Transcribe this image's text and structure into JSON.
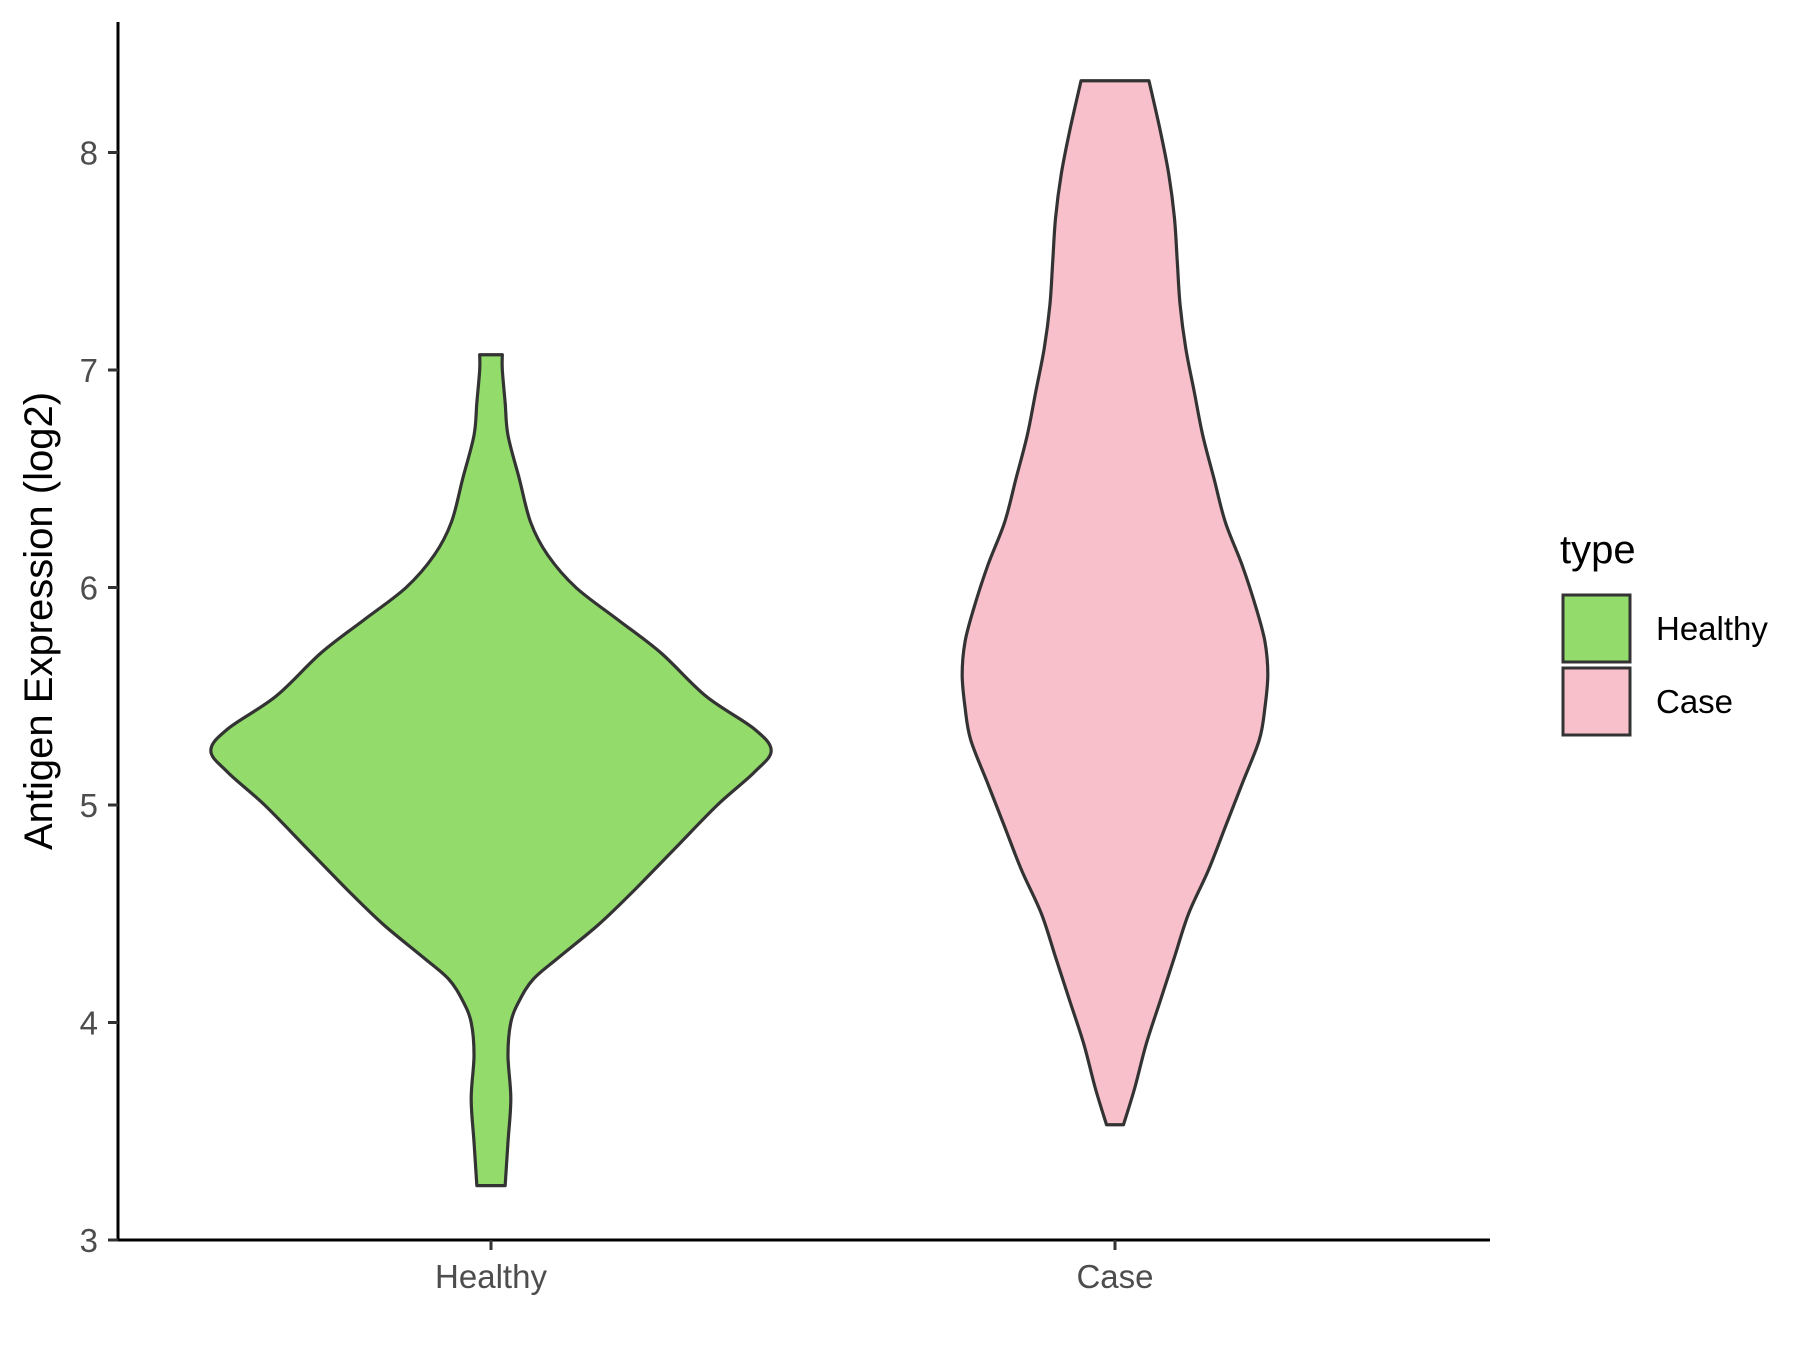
{
  "chart_data": {
    "type": "violin",
    "title": "",
    "xlabel": "",
    "ylabel": "Antigen Expression (log2)",
    "ylim": [
      3,
      8.6
    ],
    "yticks": [
      3,
      4,
      5,
      6,
      7,
      8
    ],
    "categories": [
      "Healthy",
      "Case"
    ],
    "grid": false,
    "legend": {
      "title": "type",
      "placement": "right",
      "entries": [
        {
          "label": "Healthy",
          "color": "#93dc6b"
        },
        {
          "label": "Case",
          "color": "#f8c0cb"
        }
      ]
    },
    "series": [
      {
        "name": "Healthy",
        "color": "#93dc6b",
        "outline": "#333333",
        "min": 3.25,
        "max": 7.07,
        "density_profile": [
          [
            3.25,
            0.05
          ],
          [
            3.45,
            0.06
          ],
          [
            3.65,
            0.07
          ],
          [
            3.85,
            0.06
          ],
          [
            4.0,
            0.07
          ],
          [
            4.1,
            0.1
          ],
          [
            4.2,
            0.15
          ],
          [
            4.3,
            0.24
          ],
          [
            4.45,
            0.38
          ],
          [
            4.6,
            0.5
          ],
          [
            4.8,
            0.65
          ],
          [
            5.0,
            0.8
          ],
          [
            5.15,
            0.93
          ],
          [
            5.25,
            0.99
          ],
          [
            5.35,
            0.93
          ],
          [
            5.5,
            0.76
          ],
          [
            5.7,
            0.6
          ],
          [
            5.85,
            0.45
          ],
          [
            6.0,
            0.3
          ],
          [
            6.15,
            0.2
          ],
          [
            6.3,
            0.14
          ],
          [
            6.5,
            0.1
          ],
          [
            6.7,
            0.06
          ],
          [
            6.85,
            0.05
          ],
          [
            7.0,
            0.04
          ],
          [
            7.07,
            0.04
          ]
        ]
      },
      {
        "name": "Case",
        "color": "#f8c0cb",
        "outline": "#333333",
        "min": 3.53,
        "max": 8.33,
        "density_profile": [
          [
            3.53,
            0.03
          ],
          [
            3.7,
            0.07
          ],
          [
            3.9,
            0.11
          ],
          [
            4.1,
            0.16
          ],
          [
            4.3,
            0.21
          ],
          [
            4.5,
            0.26
          ],
          [
            4.7,
            0.33
          ],
          [
            4.9,
            0.39
          ],
          [
            5.1,
            0.45
          ],
          [
            5.3,
            0.51
          ],
          [
            5.45,
            0.53
          ],
          [
            5.6,
            0.54
          ],
          [
            5.75,
            0.53
          ],
          [
            5.9,
            0.5
          ],
          [
            6.1,
            0.45
          ],
          [
            6.3,
            0.39
          ],
          [
            6.5,
            0.35
          ],
          [
            6.7,
            0.31
          ],
          [
            6.9,
            0.28
          ],
          [
            7.1,
            0.25
          ],
          [
            7.3,
            0.23
          ],
          [
            7.5,
            0.22
          ],
          [
            7.7,
            0.21
          ],
          [
            7.9,
            0.19
          ],
          [
            8.1,
            0.16
          ],
          [
            8.33,
            0.12
          ]
        ]
      }
    ]
  }
}
